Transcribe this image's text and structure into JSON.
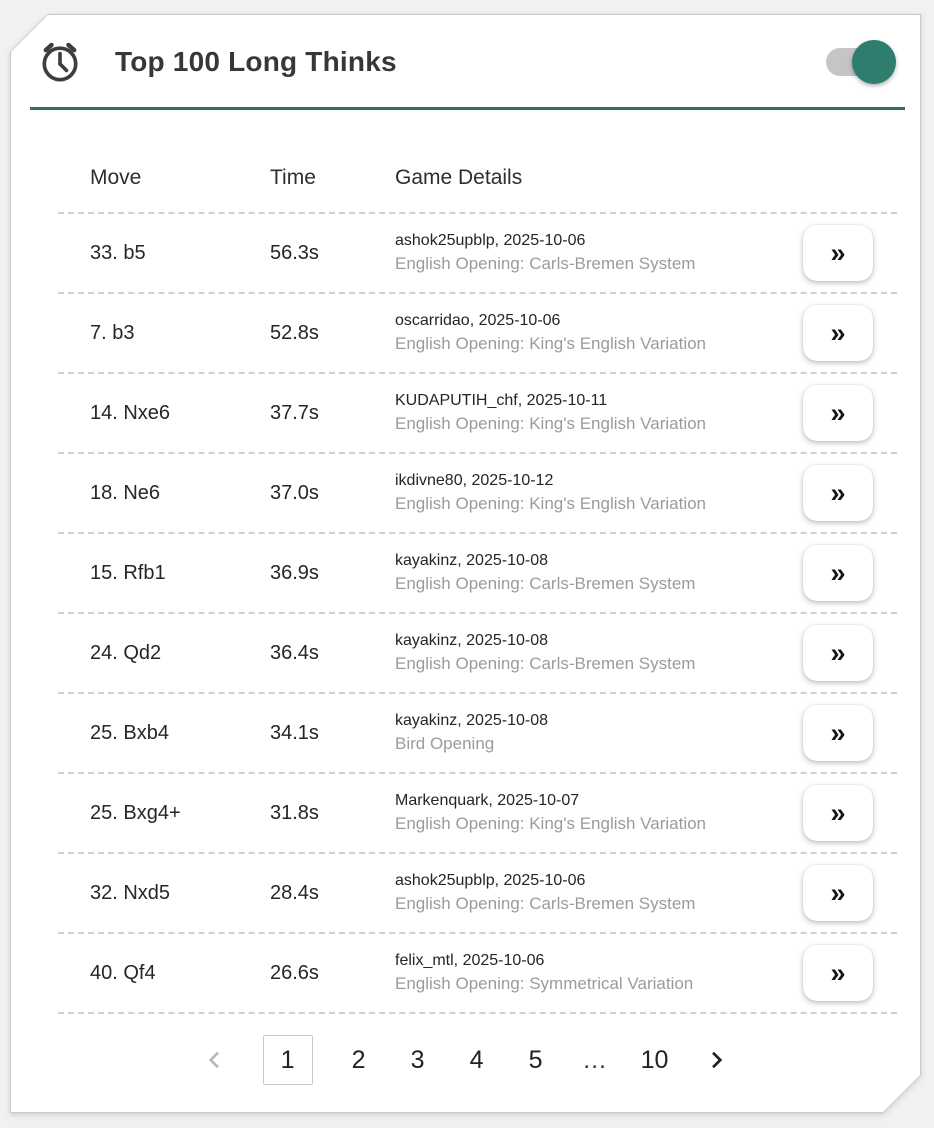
{
  "header": {
    "title": "Top 100 Long Thinks",
    "icon": "alarm-clock",
    "toggle_on": true
  },
  "colors": {
    "accent_teal": "#2b7166",
    "toggle_thumb": "#2e7d6e",
    "icon_stroke": "#3d3d3d",
    "secondary_text": "#9b9b9b"
  },
  "table": {
    "columns": [
      "Move",
      "Time",
      "Game Details"
    ],
    "row_action_label": "»",
    "rows": [
      {
        "move": "33. b5",
        "time": "56.3s",
        "player_date": "ashok25upblp, 2025-10-06",
        "opening": "English Opening: Carls-Bremen System"
      },
      {
        "move": "7. b3",
        "time": "52.8s",
        "player_date": "oscarridao, 2025-10-06",
        "opening": "English Opening: King's English Variation"
      },
      {
        "move": "14. Nxe6",
        "time": "37.7s",
        "player_date": "KUDAPUTIH_chf, 2025-10-11",
        "opening": "English Opening: King's English Variation"
      },
      {
        "move": "18. Ne6",
        "time": "37.0s",
        "player_date": "ikdivne80, 2025-10-12",
        "opening": "English Opening: King's English Variation"
      },
      {
        "move": "15. Rfb1",
        "time": "36.9s",
        "player_date": "kayakinz, 2025-10-08",
        "opening": "English Opening: Carls-Bremen System"
      },
      {
        "move": "24. Qd2",
        "time": "36.4s",
        "player_date": "kayakinz, 2025-10-08",
        "opening": "English Opening: Carls-Bremen System"
      },
      {
        "move": "25. Bxb4",
        "time": "34.1s",
        "player_date": "kayakinz, 2025-10-08",
        "opening": "Bird Opening"
      },
      {
        "move": "25. Bxg4+",
        "time": "31.8s",
        "player_date": "Markenquark, 2025-10-07",
        "opening": "English Opening: King's English Variation"
      },
      {
        "move": "32. Nxd5",
        "time": "28.4s",
        "player_date": "ashok25upblp, 2025-10-06",
        "opening": "English Opening: Carls-Bremen System"
      },
      {
        "move": "40. Qf4",
        "time": "26.6s",
        "player_date": "felix_mtl, 2025-10-06",
        "opening": "English Opening: Symmetrical Variation"
      }
    ]
  },
  "pagination": {
    "pages": [
      "1",
      "2",
      "3",
      "4",
      "5",
      "…",
      "10"
    ],
    "current": "1",
    "prev_enabled": false,
    "next_enabled": true
  }
}
